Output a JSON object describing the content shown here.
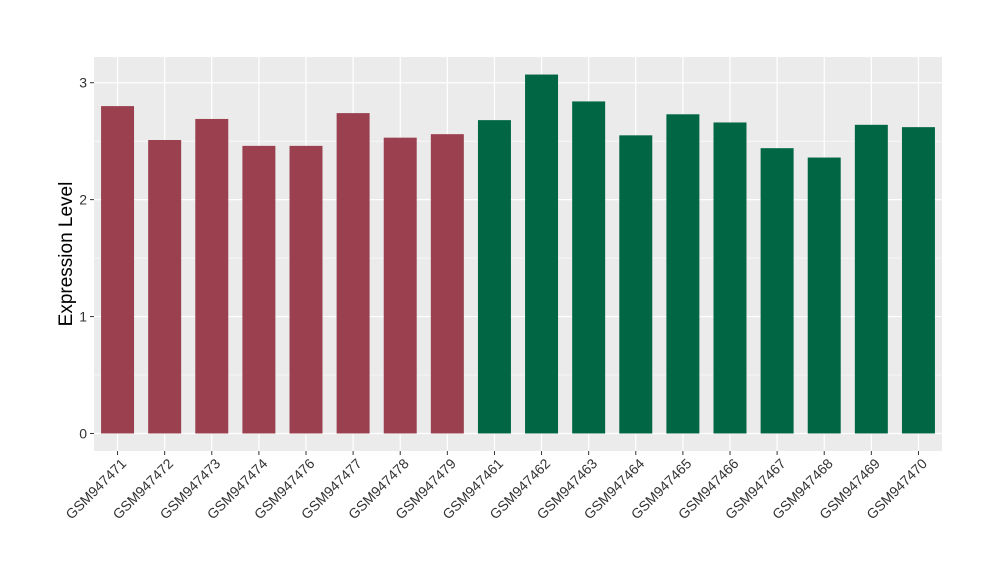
{
  "chart_data": {
    "type": "bar",
    "title": "",
    "xlabel": "",
    "ylabel": "Expression Level",
    "ylim": [
      -0.15,
      3.22
    ],
    "yticks": [
      0,
      1,
      2,
      3
    ],
    "grid": true,
    "legend": "none",
    "categories": [
      "GSM947471",
      "GSM947472",
      "GSM947473",
      "GSM947474",
      "GSM947476",
      "GSM947477",
      "GSM947478",
      "GSM947479",
      "GSM947461",
      "GSM947462",
      "GSM947463",
      "GSM947464",
      "GSM947465",
      "GSM947466",
      "GSM947467",
      "GSM947468",
      "GSM947469",
      "GSM947470"
    ],
    "values": [
      2.8,
      2.51,
      2.69,
      2.46,
      2.46,
      2.74,
      2.53,
      2.56,
      2.68,
      3.07,
      2.84,
      2.55,
      2.73,
      2.66,
      2.44,
      2.36,
      2.64,
      2.62
    ],
    "groups": [
      0,
      0,
      0,
      0,
      0,
      0,
      0,
      0,
      1,
      1,
      1,
      1,
      1,
      1,
      1,
      1,
      1,
      1
    ],
    "group_colors": [
      "#9a404e",
      "#006644"
    ],
    "panel_background": "#ebebeb",
    "grid_color": "#ffffff"
  }
}
